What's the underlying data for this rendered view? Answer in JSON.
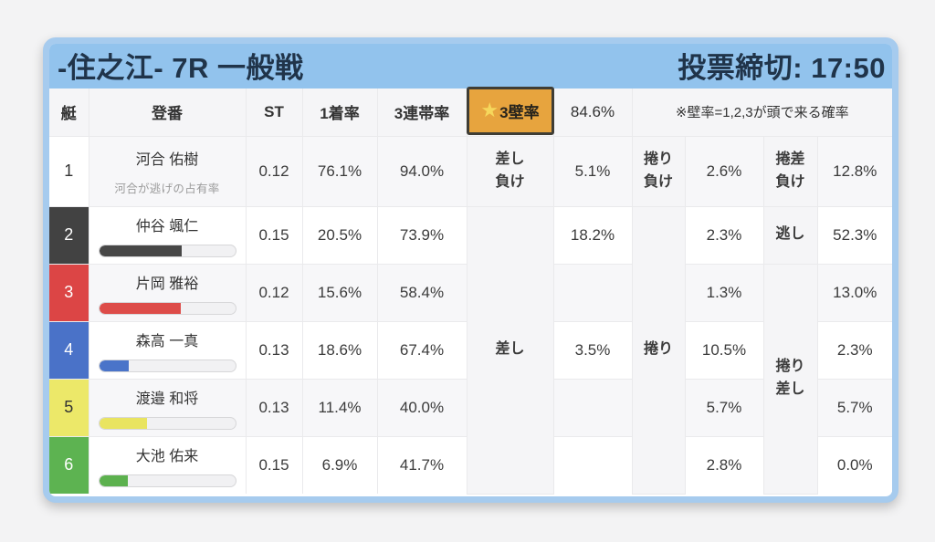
{
  "page": {
    "background": "#f3f3f4"
  },
  "header": {
    "title": "-住之江- 7R 一般戦",
    "deadline": "投票締切: 17:50",
    "bar_color": "#92c3ed",
    "text_color": "#20344a"
  },
  "table": {
    "columns": {
      "boat": "艇",
      "entry": "登番",
      "st": "ST",
      "win1": "1着率",
      "top3": "3連帯率"
    },
    "wall": {
      "star_icon": "★",
      "label": "3壁率",
      "value": "84.6%",
      "note": "※壁率=1,2,3が頭で来る確率",
      "box_color": "#e7a43e",
      "border_color": "#474130"
    },
    "merged_labels": {
      "sashi_make": {
        "lines": [
          "差し",
          "負け"
        ]
      },
      "sashi": "差し",
      "makuri_make": {
        "lines": [
          "捲り",
          "負け"
        ]
      },
      "makuri": "捲り",
      "makurizashi_make": {
        "lines": [
          "捲差",
          "負け"
        ]
      },
      "nigashi": "逃し",
      "makurizashi": {
        "lines": [
          "捲り",
          "差し"
        ]
      }
    },
    "rows": [
      {
        "boat": "1",
        "name": "河合 佑樹",
        "caption": "河合が逃げの占有率",
        "st": "0.12",
        "win1": "76.1%",
        "top3": "94.0%",
        "sashi_value": "5.1%",
        "makuri_value": "2.6%",
        "third_value": "12.8%",
        "boat_bg": "#ffffff",
        "boat_fg": "#333333"
      },
      {
        "boat": "2",
        "name": "仲谷 颯仁",
        "st": "0.15",
        "win1": "20.5%",
        "top3": "73.9%",
        "sashi_value": "18.2%",
        "makuri_value": "2.3%",
        "third_value": "52.3%",
        "boat_bg": "#424242",
        "boat_fg": "#ffffff",
        "bar_percent": 61,
        "bar_color": "#474747"
      },
      {
        "boat": "3",
        "name": "片岡 雅裕",
        "st": "0.12",
        "win1": "15.6%",
        "top3": "58.4%",
        "sashi_value": "",
        "makuri_value": "1.3%",
        "third_value": "13.0%",
        "boat_bg": "#dc4545",
        "boat_fg": "#ffffff",
        "bar_percent": 60,
        "bar_color": "#dd4c49"
      },
      {
        "boat": "4",
        "name": "森高 一真",
        "st": "0.13",
        "win1": "18.6%",
        "top3": "67.4%",
        "sashi_value": "3.5%",
        "makuri_value": "10.5%",
        "third_value": "2.3%",
        "boat_bg": "#4a72c8",
        "boat_fg": "#ffffff",
        "bar_percent": 22,
        "bar_color": "#4a74c9"
      },
      {
        "boat": "5",
        "name": "渡邉 和将",
        "st": "0.13",
        "win1": "11.4%",
        "top3": "40.0%",
        "sashi_value": "",
        "makuri_value": "5.7%",
        "third_value": "5.7%",
        "boat_bg": "#ece869",
        "boat_fg": "#333333",
        "bar_percent": 35,
        "bar_color": "#e9e460"
      },
      {
        "boat": "6",
        "name": "大池 佑来",
        "st": "0.15",
        "win1": "6.9%",
        "top3": "41.7%",
        "sashi_value": "",
        "makuri_value": "2.8%",
        "third_value": "0.0%",
        "boat_bg": "#5db351",
        "boat_fg": "#ffffff",
        "bar_percent": 21,
        "bar_color": "#5cb14e"
      }
    ]
  }
}
